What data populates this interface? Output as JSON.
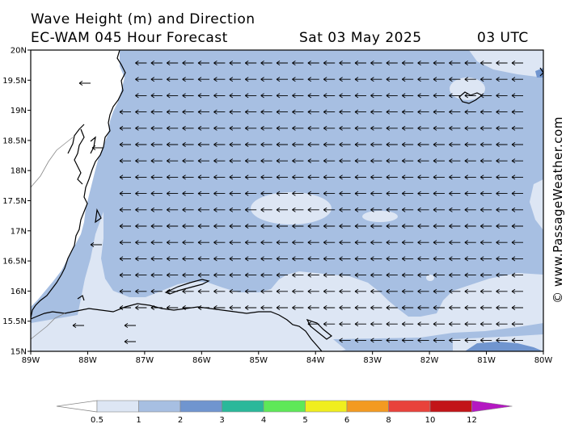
{
  "header": {
    "title": "Wave Height (m) and Direction",
    "model": "EC-WAM 045 Hour Forecast",
    "date": "Sat 03 May 2025",
    "time": "03 UTC"
  },
  "copyright": "© www.PassageWeather.com",
  "map": {
    "lat_labels": [
      "20N",
      "19.5N",
      "19N",
      "18.5N",
      "18N",
      "17.5N",
      "17N",
      "16.5N",
      "16N",
      "15.5N",
      "15N"
    ],
    "lon_labels": [
      "89W",
      "88W",
      "87W",
      "86W",
      "85W",
      "84W",
      "83W",
      "82W",
      "81W",
      "80W"
    ],
    "wave_direction": "from east (arrows point west)"
  },
  "legend": {
    "labels": [
      "0.5",
      "1",
      "2",
      "3",
      "4",
      "5",
      "6",
      "8",
      "10",
      "12"
    ],
    "colors": [
      "#dde6f4",
      "#a7bfe2",
      "#7095cf",
      "#2ab89a",
      "#5ee858",
      "#f0ee1e",
      "#f39a21",
      "#e8423b",
      "#c21418",
      "#b418c2"
    ]
  }
}
